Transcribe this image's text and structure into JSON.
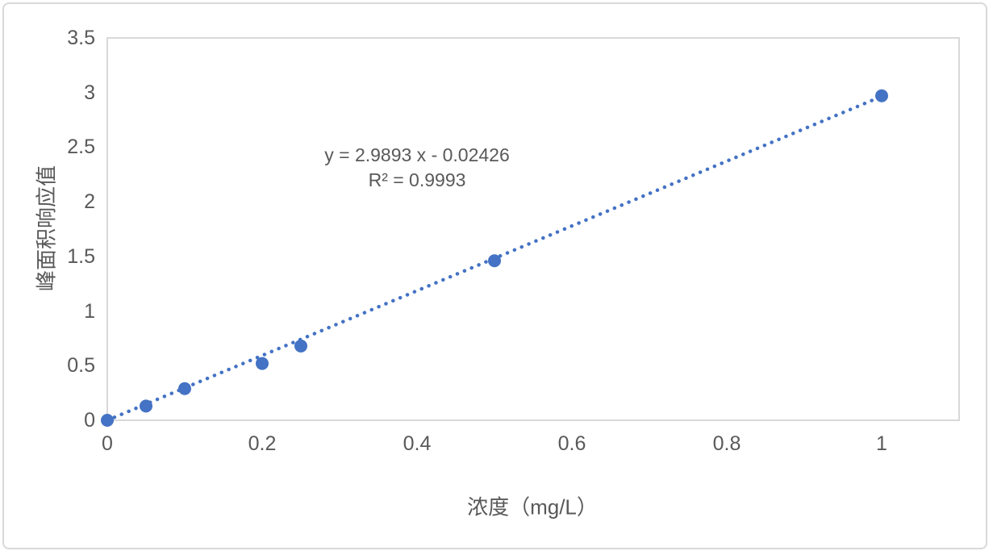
{
  "chart_data": {
    "type": "scatter",
    "title": "",
    "xlabel": "浓度（mg/L）",
    "ylabel": "峰面积响应值",
    "x": [
      0,
      0.05,
      0.1,
      0.2,
      0.25,
      0.5,
      1
    ],
    "y": [
      0.0,
      0.13,
      0.29,
      0.52,
      0.68,
      1.46,
      2.97
    ],
    "trendline": {
      "slope": 2.9893,
      "intercept": -0.02426,
      "style": "dotted",
      "x_start": 0,
      "x_end": 1
    },
    "equation_line1": "y = 2.9893 x - 0.02426",
    "equation_line2": "R² = 0.9993",
    "xlim": [
      0,
      1.1
    ],
    "ylim": [
      0,
      3.5
    ],
    "x_ticks": [
      0,
      0.2,
      0.4,
      0.6,
      0.8,
      1
    ],
    "x_tick_labels": [
      "0",
      "0.2",
      "0.4",
      "0.6",
      "0.8",
      "1"
    ],
    "y_ticks": [
      0,
      0.5,
      1,
      1.5,
      2,
      2.5,
      3,
      3.5
    ],
    "y_tick_labels": [
      "0",
      "0.5",
      "1",
      "1.5",
      "2",
      "2.5",
      "3",
      "3.5"
    ],
    "grid": false,
    "legend": "none",
    "marker_color": "#4472C4",
    "line_color": "#4472C4",
    "text_color": "#595959",
    "axis_color": "#D9D9D9"
  }
}
